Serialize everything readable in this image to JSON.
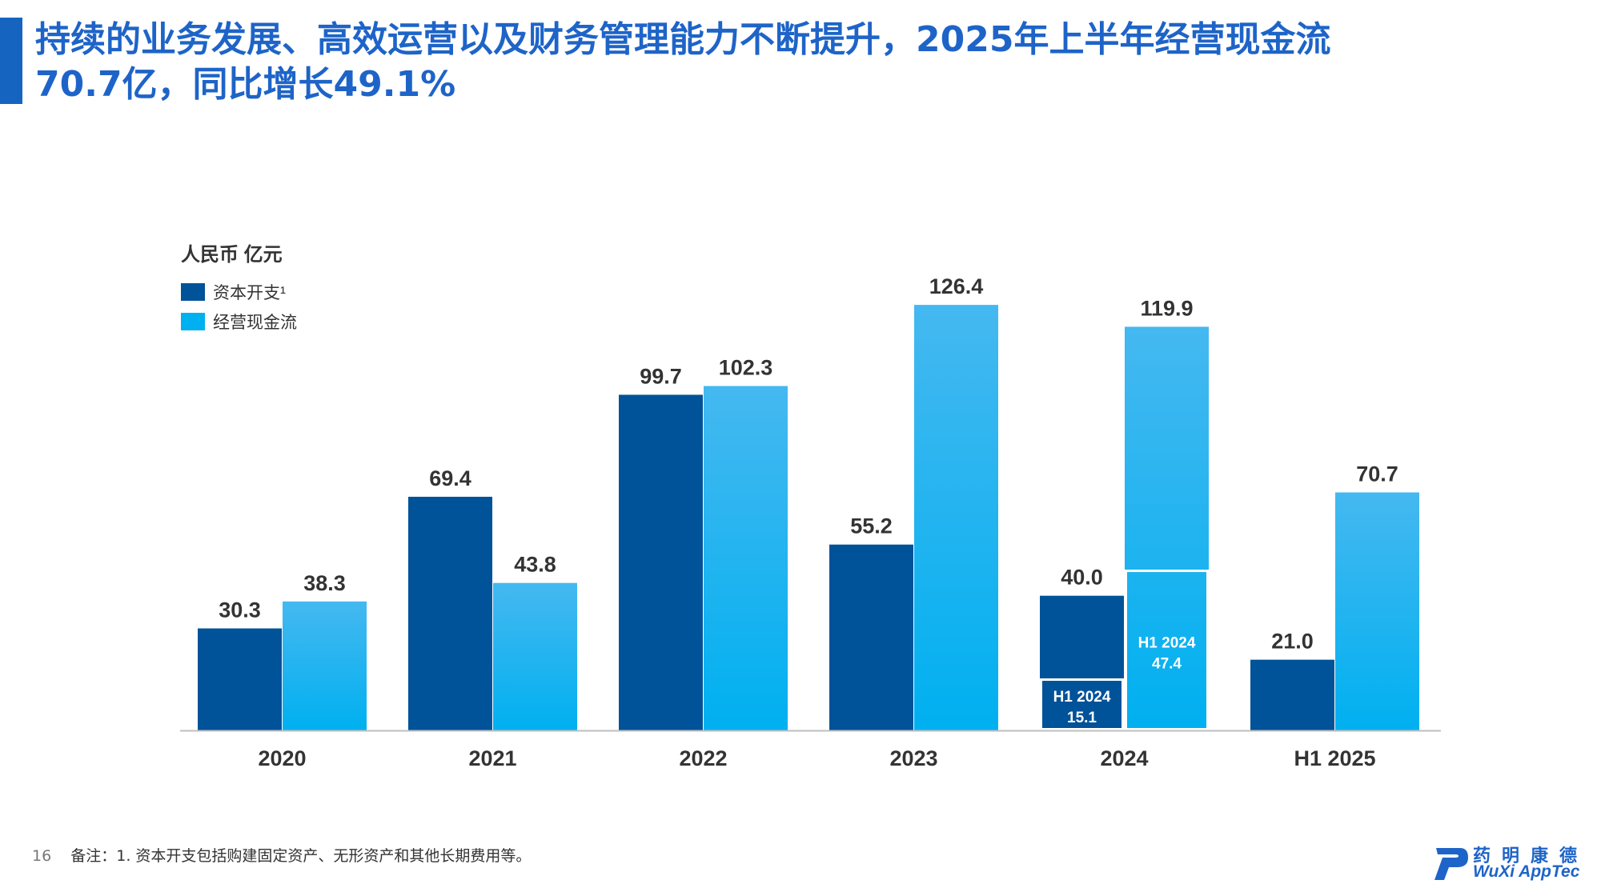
{
  "header": {
    "title_line1": "持续的业务发展、高效运营以及财务管理能力不断提升，2025年上半年经营现金流",
    "title_line2": "70.7亿，同比增长49.1%"
  },
  "chart_data": {
    "type": "bar",
    "unit_label": "人民币 亿元",
    "categories": [
      "2020",
      "2021",
      "2022",
      "2023",
      "2024",
      "H1 2025"
    ],
    "series": [
      {
        "name": "资本开支¹",
        "color": "#005299",
        "values": [
          30.3,
          69.4,
          99.7,
          55.2,
          40.0,
          21.0
        ]
      },
      {
        "name": "经营现金流",
        "color": "#00b0f0",
        "values": [
          38.3,
          43.8,
          102.3,
          126.4,
          119.9,
          70.7
        ]
      }
    ],
    "sub_segments": [
      {
        "series": 0,
        "category": "2024",
        "label": "H1 2024",
        "value": 15.1
      },
      {
        "series": 1,
        "category": "2024",
        "label": "H1 2024",
        "value": 47.4
      }
    ],
    "ylim": [
      0,
      130
    ]
  },
  "footnote": {
    "page_number": "16",
    "text": "备注：1. 资本开支包括购建固定资产、无形资产和其他长期费用等。"
  },
  "logo": {
    "cn_name": "药明康德",
    "en_name": "WuXi AppTec",
    "color": "#1e64c8"
  }
}
